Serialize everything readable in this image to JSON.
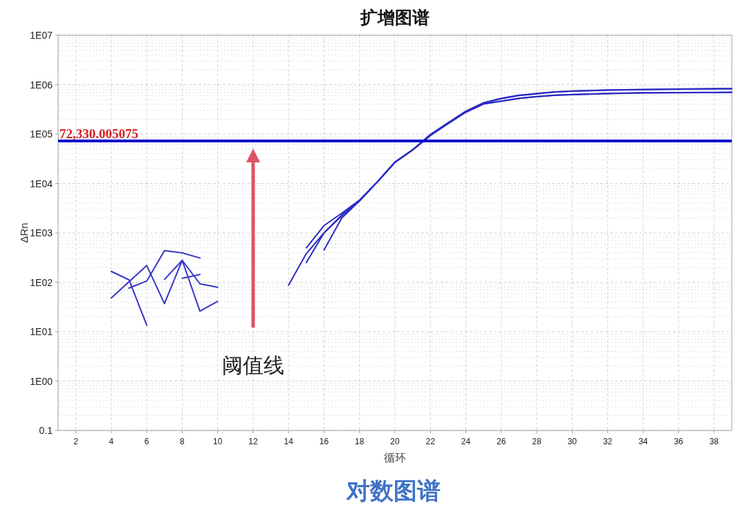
{
  "chart_data": {
    "type": "line",
    "title": "扩增图谱",
    "xlabel": "循环",
    "ylabel": "ΔRn",
    "log": true,
    "grid": true,
    "xlim": [
      1,
      39
    ],
    "xticks": [
      2,
      4,
      6,
      8,
      10,
      12,
      14,
      16,
      18,
      20,
      22,
      24,
      26,
      28,
      30,
      32,
      34,
      36,
      38
    ],
    "ylim": [
      0.1,
      10000000
    ],
    "yticks": [
      0.1,
      {
        "value": 1,
        "label": "1E00"
      },
      {
        "value": 10,
        "label": "1E01"
      },
      {
        "value": 100,
        "label": "1E02"
      },
      {
        "value": 1000,
        "label": "1E03"
      },
      {
        "value": 10000,
        "label": "1E04"
      },
      {
        "value": 100000,
        "label": "1E05"
      },
      {
        "value": 1000000,
        "label": "1E06"
      },
      {
        "value": 10000000,
        "label": "1E07"
      }
    ],
    "series": [
      {
        "color": "#3535c8",
        "x": [
          4,
          5,
          6
        ],
        "values": [
          166,
          112,
          13.5
        ]
      },
      {
        "color": "#3535c8",
        "x": [
          4,
          6,
          7,
          8,
          9,
          10
        ],
        "values": [
          48,
          218,
          37,
          278,
          26,
          41
        ]
      },
      {
        "color": "#3535c8",
        "x": [
          5,
          6,
          7,
          8,
          9
        ],
        "values": [
          76,
          106,
          437,
          392,
          310
        ]
      },
      {
        "color": "#3535c8",
        "x": [
          7,
          8,
          9,
          10
        ],
        "values": [
          114,
          278,
          93,
          79
        ]
      },
      {
        "color": "#3535c8",
        "x": [
          8,
          9
        ],
        "values": [
          120,
          144
        ]
      },
      {
        "color": "#2b2bc4",
        "x": [
          14,
          15,
          16,
          17,
          18,
          19,
          20,
          21,
          22,
          23,
          24,
          25,
          26,
          27,
          28,
          29,
          30,
          32,
          34,
          36,
          38,
          39
        ],
        "values": [
          87,
          380,
          1000,
          2200,
          4500,
          10700,
          27000,
          48000,
          98000,
          170000,
          290000,
          430000,
          530000,
          610000,
          665000,
          715000,
          745000,
          780000,
          800000,
          815000,
          828000,
          832000
        ]
      },
      {
        "color": "#2b2bc4",
        "x": [
          15,
          16,
          17,
          18,
          19,
          20,
          21,
          22,
          23,
          24,
          25,
          26,
          27,
          28,
          29,
          30,
          32,
          34,
          36,
          38,
          39
        ],
        "values": [
          500,
          1400,
          2500,
          4600,
          10700,
          27000,
          48000,
          96000,
          168000,
          286000,
          425000,
          520000,
          600000,
          655000,
          705000,
          735000,
          770000,
          790000,
          805000,
          820000,
          825000
        ]
      },
      {
        "color": "#2b2bc4",
        "x": [
          15,
          16,
          17,
          18,
          19,
          20,
          21,
          22,
          23,
          24,
          25,
          26,
          27,
          28,
          29,
          30,
          32,
          34,
          36,
          38,
          39
        ],
        "values": [
          250,
          1000,
          2300,
          4500,
          10700,
          27000,
          48000,
          94000,
          164000,
          280000,
          410000,
          466000,
          530000,
          575000,
          610000,
          630000,
          665000,
          685000,
          690000,
          695000,
          700000
        ]
      },
      {
        "color": "#2b2bc4",
        "x": [
          16,
          17,
          18,
          19,
          20,
          21,
          22,
          23,
          24,
          25,
          26,
          27,
          28,
          29,
          30,
          32,
          34,
          36,
          38,
          39
        ],
        "values": [
          450,
          2000,
          4400,
          10600,
          26500,
          47500,
          93000,
          162000,
          276000,
          405000,
          460000,
          525000,
          570000,
          605000,
          625000,
          660000,
          680000,
          686000,
          690000,
          694000
        ]
      }
    ],
    "ref_lines": [
      {
        "axis": "y",
        "value": 72330.005075,
        "label": "72,330.005075",
        "color": "#0000cc"
      }
    ],
    "annotations": [
      "阈值线",
      "对数图谱"
    ]
  }
}
